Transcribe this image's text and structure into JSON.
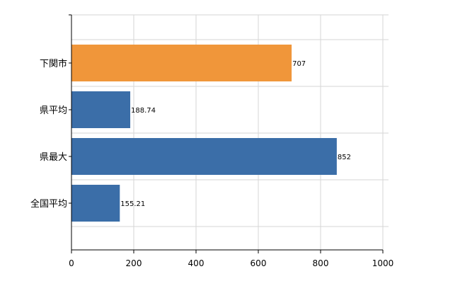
{
  "chart_data": {
    "type": "bar",
    "orientation": "horizontal",
    "categories": [
      "下関市",
      "県平均",
      "県最大",
      "全国平均"
    ],
    "values": [
      707,
      188.74,
      852,
      155.21
    ],
    "value_labels": [
      "707",
      "188.74",
      "852",
      "155.21"
    ],
    "bar_colors": [
      "#f0963a",
      "#3b6ea8",
      "#3b6ea8",
      "#3b6ea8"
    ],
    "xlim": [
      0,
      1000
    ],
    "xticks": [
      0,
      200,
      400,
      600,
      800,
      1000
    ],
    "xtick_labels": [
      "0",
      "200",
      "400",
      "600",
      "800",
      "1000"
    ],
    "grid": true,
    "title": "",
    "xlabel": "",
    "ylabel": ""
  }
}
